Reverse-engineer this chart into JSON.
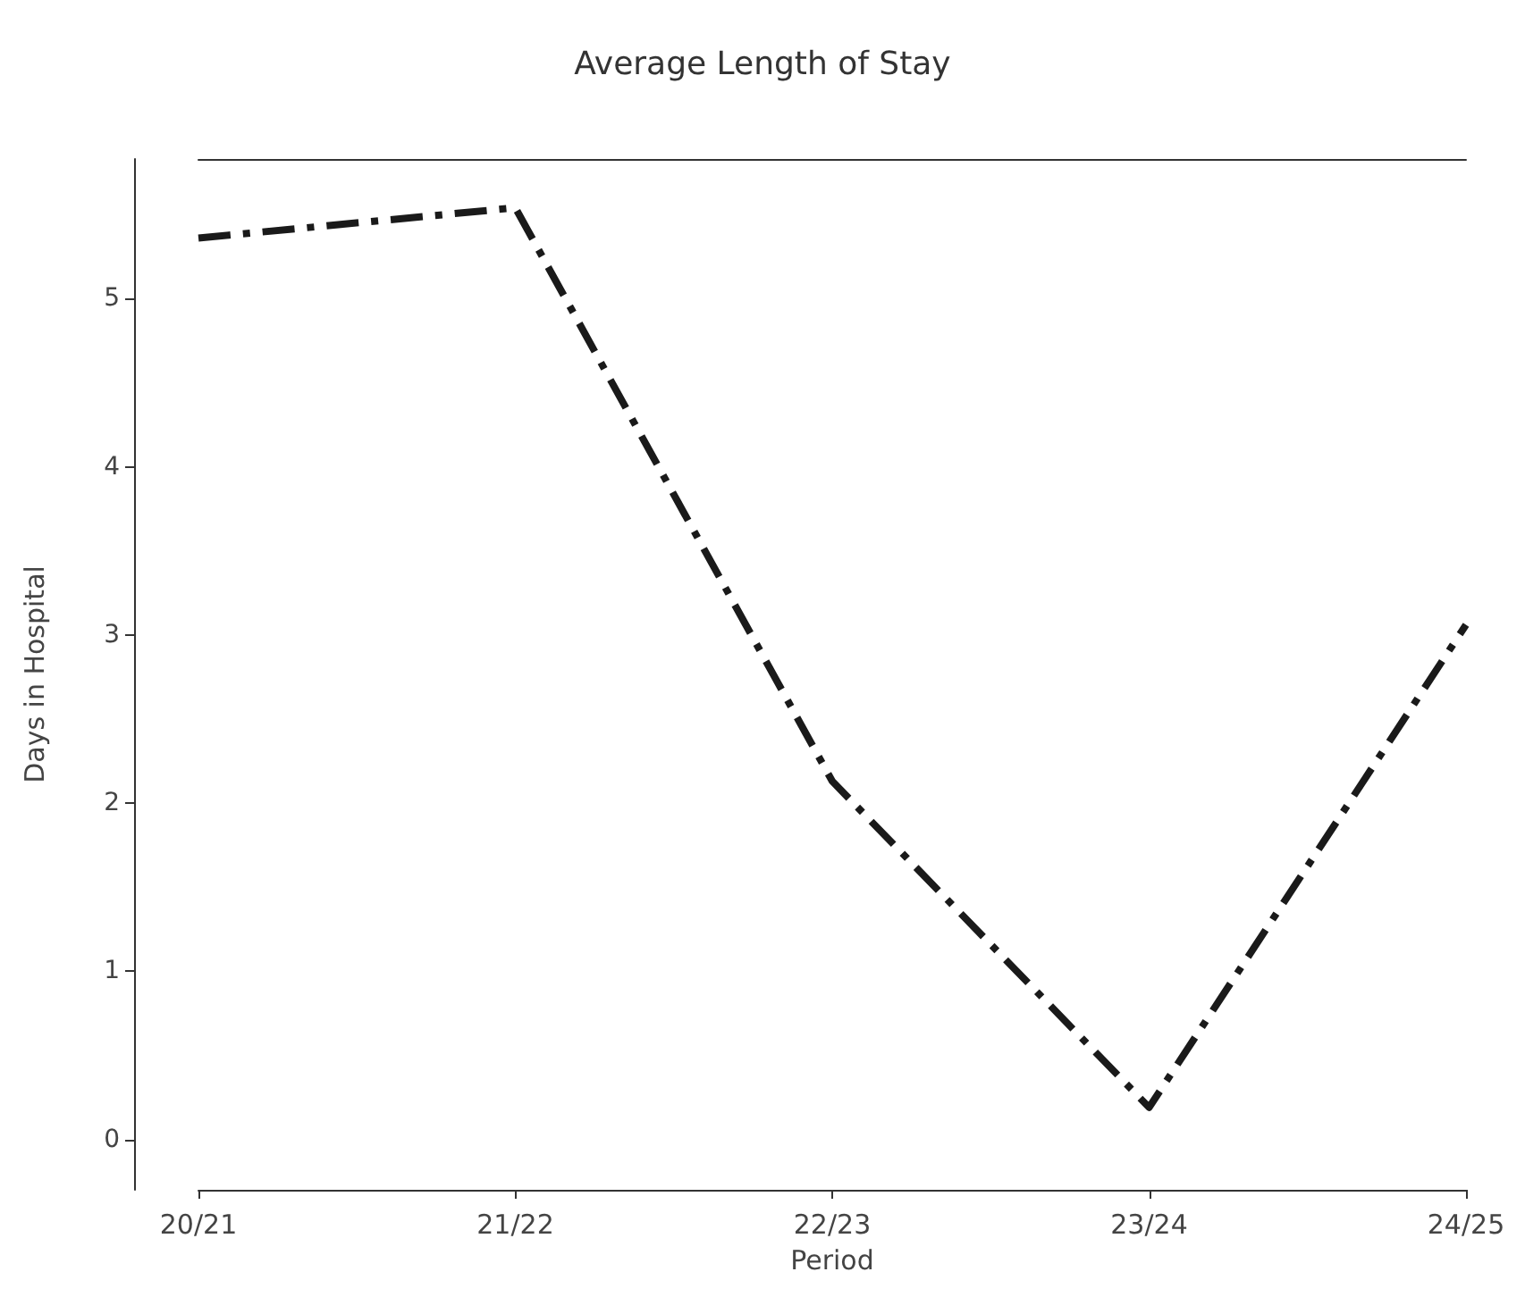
{
  "chart_data": {
    "type": "line",
    "title": "Average Length of Stay",
    "xlabel": "Period",
    "ylabel": "Days in Hospital",
    "categories": [
      "20/21",
      "21/22",
      "22/23",
      "23/24",
      "24/25"
    ],
    "series": [
      {
        "color": "#1a1a1a",
        "values": [
          5.36,
          5.54,
          2.13,
          0.19,
          3.06
        ]
      }
    ],
    "ylim": [
      -0.3,
      5.83
    ],
    "yticks": [
      0,
      1,
      2,
      3,
      4,
      5
    ],
    "grid": false,
    "marker": "none",
    "line_style": "dashed"
  }
}
